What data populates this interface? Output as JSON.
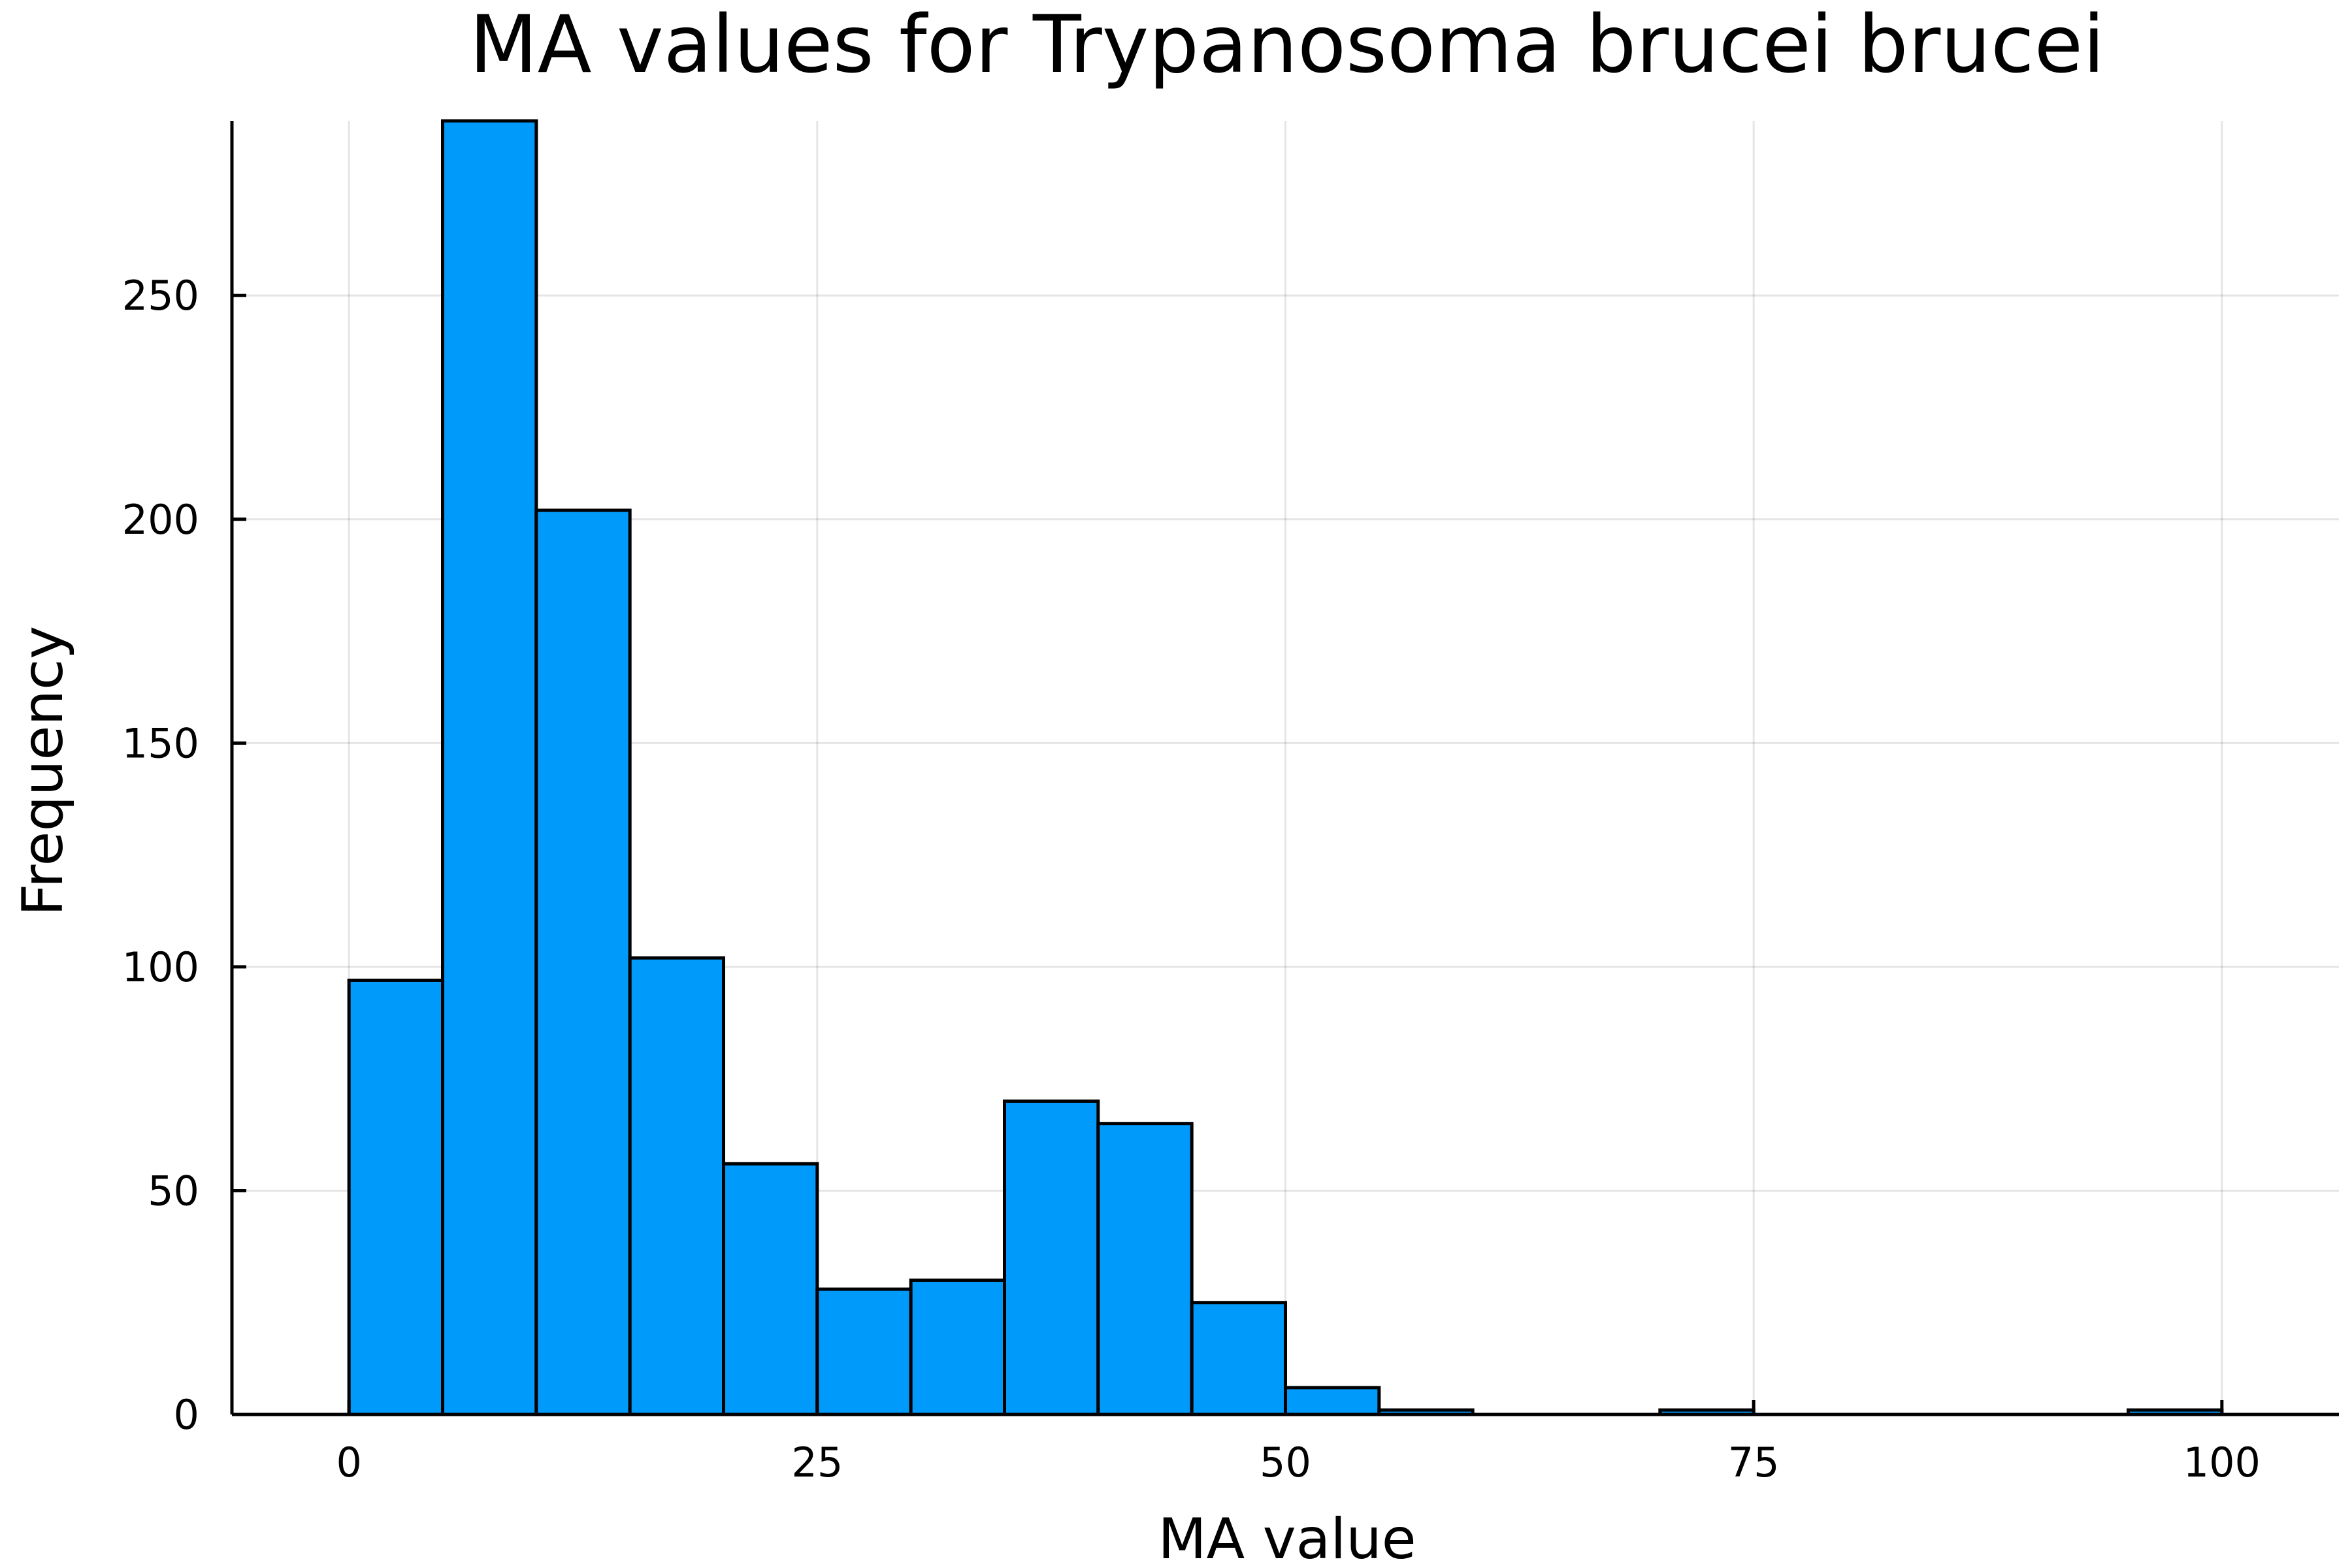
{
  "chart_data": {
    "type": "bar",
    "title": "MA values for Trypanosoma brucei brucei",
    "xlabel": "MA value",
    "ylabel": "Frequency",
    "bar_color": "#009AFA",
    "edge_color": "#000000",
    "grid": true,
    "legend": "none",
    "xlim": [
      -6.25,
      106.25
    ],
    "ylim": [
      0,
      289
    ],
    "x_ticks": [
      0,
      25,
      50,
      75,
      100
    ],
    "y_ticks": [
      0,
      50,
      100,
      150,
      200,
      250
    ],
    "bins": [
      {
        "start": 0,
        "end": 5,
        "value": 97
      },
      {
        "start": 5,
        "end": 10,
        "value": 289
      },
      {
        "start": 10,
        "end": 15,
        "value": 202
      },
      {
        "start": 15,
        "end": 20,
        "value": 102
      },
      {
        "start": 20,
        "end": 25,
        "value": 56
      },
      {
        "start": 25,
        "end": 30,
        "value": 28
      },
      {
        "start": 30,
        "end": 35,
        "value": 30
      },
      {
        "start": 35,
        "end": 40,
        "value": 70
      },
      {
        "start": 40,
        "end": 45,
        "value": 65
      },
      {
        "start": 45,
        "end": 50,
        "value": 25
      },
      {
        "start": 50,
        "end": 55,
        "value": 6
      },
      {
        "start": 55,
        "end": 60,
        "value": 1
      },
      {
        "start": 60,
        "end": 65,
        "value": 0
      },
      {
        "start": 65,
        "end": 70,
        "value": 0
      },
      {
        "start": 70,
        "end": 75,
        "value": 1
      },
      {
        "start": 75,
        "end": 80,
        "value": 0
      },
      {
        "start": 80,
        "end": 85,
        "value": 0
      },
      {
        "start": 85,
        "end": 90,
        "value": 0
      },
      {
        "start": 90,
        "end": 95,
        "value": 0
      },
      {
        "start": 95,
        "end": 100,
        "value": 1
      }
    ]
  }
}
